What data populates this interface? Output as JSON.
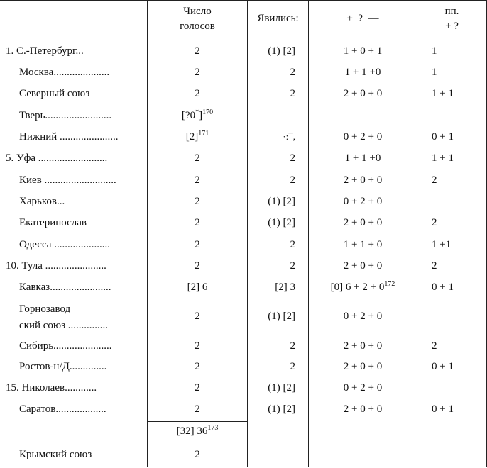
{
  "header": {
    "votes_line1": "Число",
    "votes_line2": "голосов",
    "came": "Явились:",
    "result": "+  ?  —",
    "pp_line1": "пп.",
    "pp_line2": "+ ?"
  },
  "rows": [
    {
      "label": "1. С.-Петербург...",
      "votes": "2",
      "came": "(1) [2]",
      "result": "1 + 0 + 1",
      "pp": "1"
    },
    {
      "label": "Москва.....................",
      "votes": "2",
      "came": "2",
      "result": "1 + 1 +0",
      "pp": "1"
    },
    {
      "label": "Северный союз",
      "votes": "2",
      "came": "2",
      "result": "2 + 0 + 0",
      "pp": "1 + 1"
    },
    {
      "label": "Тверь.........................",
      "votes": "[?0",
      "votes_sup_a": "*",
      "votes_after": "]",
      "votes_sup_b": "170",
      "came": "",
      "result": "",
      "pp": ""
    },
    {
      "label": "Нижний ......................",
      "votes": "[2]",
      "votes_sup_b": "171",
      "came": "·:¯,",
      "result": "0 + 2 + 0",
      "pp": "0 + 1"
    },
    {
      "label": "5. Уфа ..........................",
      "votes": "2",
      "came": "2",
      "result": "1 + 1 +0",
      "pp": "1 + 1"
    },
    {
      "label": "Киев ...........................",
      "votes": "2",
      "came": "2",
      "result": "2 + 0 + 0",
      "pp": "2"
    },
    {
      "label": "Харьков...",
      "votes": "2",
      "came": "(1) [2]",
      "result": "0 + 2 + 0",
      "pp": ""
    },
    {
      "label": "Екатеринослав",
      "votes": "2",
      "came": "(1) [2]",
      "result": "2 + 0 + 0",
      "pp": "2"
    },
    {
      "label": "Одесса .....................",
      "votes": "2",
      "came": "2",
      "result": "1 + 1 + 0",
      "pp": "1 +1"
    },
    {
      "label": "10. Тула .......................",
      "votes": "2",
      "came": "2",
      "result": "2 + 0 + 0",
      "pp": "2"
    },
    {
      "label": "Кавказ.......................",
      "votes": "[2] 6",
      "came": "[2] 3",
      "result": "[0] 6 + 2 + 0",
      "result_sup": "172",
      "pp": "0 + 1"
    },
    {
      "label_line1": "Горнозавод",
      "label_line2": "ский союз ...............",
      "votes": "2",
      "came": "(1) [2]",
      "result": "0 + 2 + 0",
      "pp": ""
    },
    {
      "label": "Сибирь......................",
      "votes": "2",
      "came": "2",
      "result": "2 + 0 + 0",
      "pp": "2"
    },
    {
      "label": "Ростов-н/Д..............",
      "votes": "2",
      "came": "2",
      "result": "2 + 0 + 0",
      "pp": "0 + 1"
    },
    {
      "label": "15. Николаев............",
      "votes": "2",
      "came": "(1) [2]",
      "result": "0 + 2 + 0",
      "pp": ""
    },
    {
      "label": "Саратов...................",
      "votes": "2",
      "came": "(1) [2]",
      "result": "2 + 0 + 0",
      "pp": "0 + 1"
    }
  ],
  "total": {
    "value": "[32] 36",
    "sup": "173"
  },
  "last_row": {
    "label": "Крымский союз",
    "votes": "2"
  }
}
